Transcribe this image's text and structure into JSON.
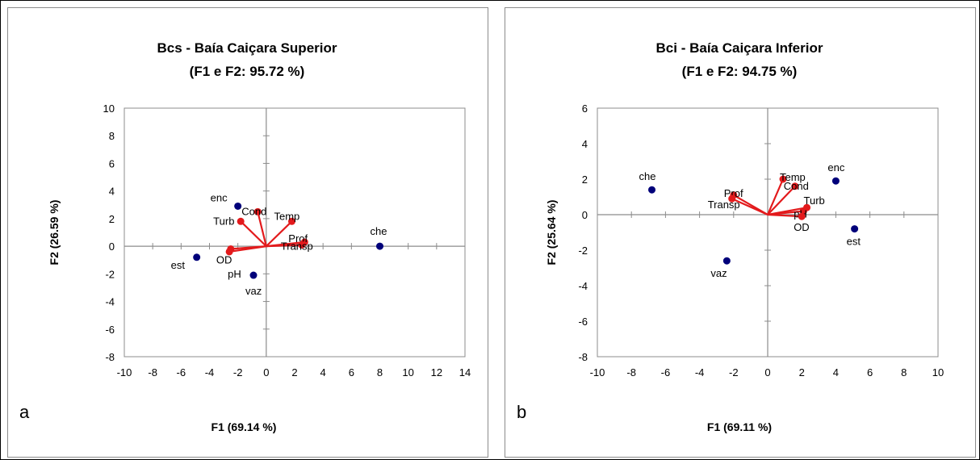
{
  "chart_data": [
    {
      "type": "scatter",
      "panel_letter": "a",
      "title": "Bcs - Baía Caiçara Superior",
      "subtitle": "(F1 e F2: 95.72 %)",
      "xlabel": "F1 (69.14 %)",
      "ylabel": "F2 (26.59 %)",
      "xlim": [
        -10,
        14
      ],
      "ylim": [
        -8,
        10
      ],
      "xticks": [
        -10,
        -8,
        -6,
        -4,
        -2,
        0,
        2,
        4,
        6,
        8,
        10,
        12,
        14
      ],
      "yticks": [
        -8,
        -6,
        -4,
        -2,
        0,
        2,
        4,
        6,
        8,
        10
      ],
      "colors": {
        "observations": "#00007a",
        "variables": "#e31a1c"
      },
      "observations": [
        {
          "label": "che",
          "x": 8.0,
          "y": 0.0
        },
        {
          "label": "enc",
          "x": -2.0,
          "y": 2.9
        },
        {
          "label": "est",
          "x": -4.9,
          "y": -0.8
        },
        {
          "label": "vaz",
          "x": -0.9,
          "y": -2.1
        }
      ],
      "variables": [
        {
          "label": "Cond",
          "x": -0.6,
          "y": 2.5
        },
        {
          "label": "Turb",
          "x": -1.8,
          "y": 1.8
        },
        {
          "label": "Temp",
          "x": 1.8,
          "y": 1.8
        },
        {
          "label": "Prof",
          "x": 2.7,
          "y": 0.3
        },
        {
          "label": "Transp",
          "x": 2.5,
          "y": 0.1
        },
        {
          "label": "OD",
          "x": -2.5,
          "y": -0.2
        },
        {
          "label": "pH",
          "x": -2.6,
          "y": -0.4
        }
      ]
    },
    {
      "type": "scatter",
      "panel_letter": "b",
      "title": "Bci  - Baía Caiçara Inferior",
      "subtitle": "(F1 e F2: 94.75 %)",
      "xlabel": "F1 (69.11 %)",
      "ylabel": "F2 (25.64 %)",
      "xlim": [
        -10,
        10
      ],
      "ylim": [
        -8,
        6
      ],
      "xticks": [
        -10,
        -8,
        -6,
        -4,
        -2,
        0,
        2,
        4,
        6,
        8,
        10
      ],
      "yticks": [
        -8,
        -6,
        -4,
        -2,
        0,
        2,
        4,
        6
      ],
      "colors": {
        "observations": "#00007a",
        "variables": "#e31a1c"
      },
      "observations": [
        {
          "label": "che",
          "x": -6.8,
          "y": 1.4
        },
        {
          "label": "enc",
          "x": 4.0,
          "y": 1.9
        },
        {
          "label": "est",
          "x": 5.1,
          "y": -0.8
        },
        {
          "label": "vaz",
          "x": -2.4,
          "y": -2.6
        }
      ],
      "variables": [
        {
          "label": "Temp",
          "x": 0.9,
          "y": 2.0
        },
        {
          "label": "Cond",
          "x": 1.6,
          "y": 1.6
        },
        {
          "label": "Turb",
          "x": 2.3,
          "y": 0.4
        },
        {
          "label": "pH",
          "x": 2.1,
          "y": 0.2
        },
        {
          "label": "OD",
          "x": 2.0,
          "y": -0.1
        },
        {
          "label": "Prof",
          "x": -2.0,
          "y": 1.1
        },
        {
          "label": "Transp",
          "x": -2.1,
          "y": 0.9
        }
      ]
    }
  ]
}
